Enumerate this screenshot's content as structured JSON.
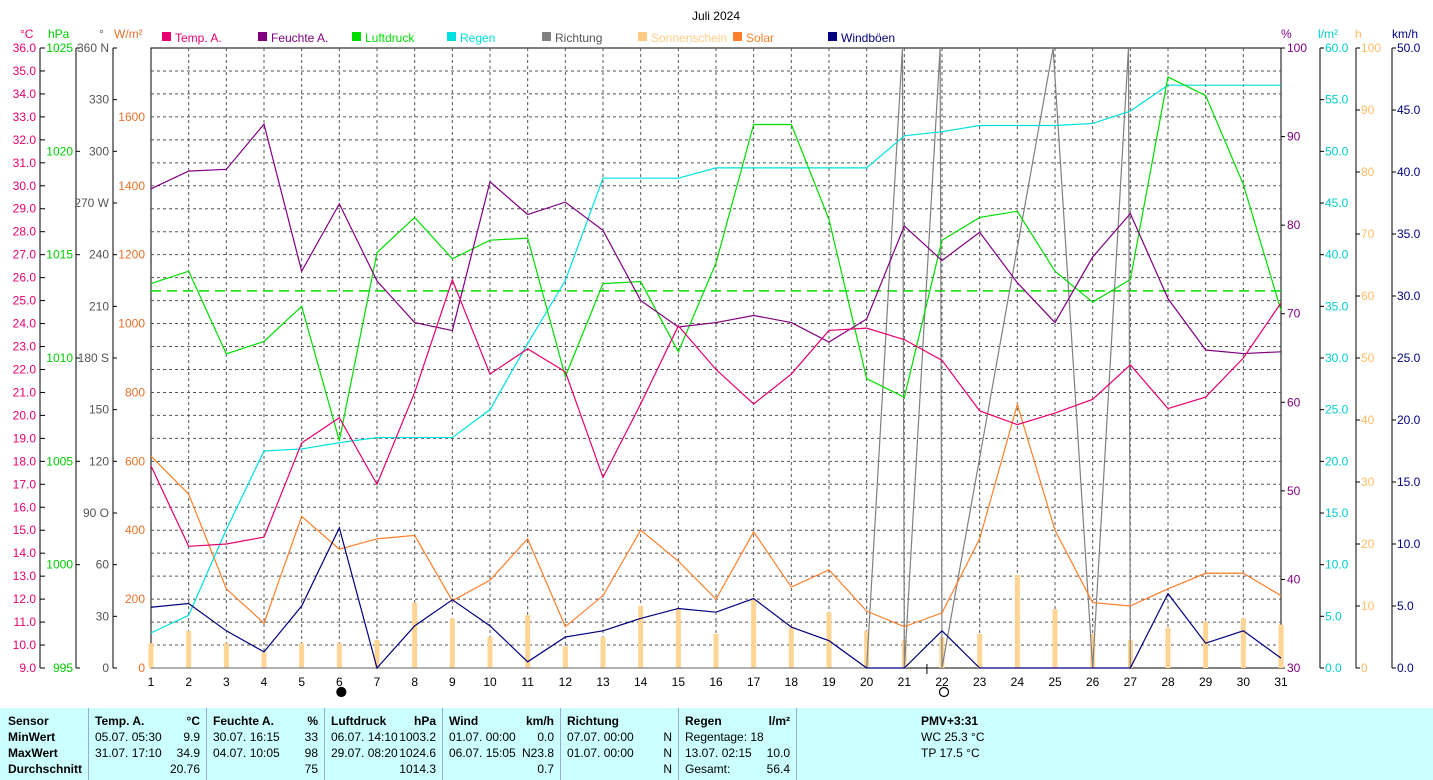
{
  "chart_data": {
    "type": "line",
    "title": "Juli 2024",
    "x_ticks": [
      1,
      2,
      3,
      4,
      5,
      6,
      7,
      8,
      9,
      10,
      11,
      12,
      13,
      14,
      15,
      16,
      17,
      18,
      19,
      20,
      21,
      22,
      23,
      24,
      25,
      26,
      27,
      28,
      29,
      30,
      31
    ],
    "legend": [
      {
        "name": "Temp. A.",
        "color": "#e8006e"
      },
      {
        "name": "Feuchte A.",
        "color": "#800080"
      },
      {
        "name": "Luftdruck",
        "color": "#00dd00"
      },
      {
        "name": "Regen",
        "color": "#00e0e0"
      },
      {
        "name": "Richtung",
        "color": "#808080"
      },
      {
        "name": "Sonnenschein",
        "color": "#ffcc88"
      },
      {
        "name": "Solar",
        "color": "#ff7f2a"
      },
      {
        "name": "Windböen",
        "color": "#000080"
      }
    ],
    "axes": {
      "temp": {
        "unit": "°C",
        "min": 9.0,
        "max": 36.0,
        "step": 1.0,
        "color": "#e8006e"
      },
      "pressure": {
        "unit": "hPa",
        "min": 995,
        "max": 1025,
        "step": 5,
        "color": "#00cc00"
      },
      "direction": {
        "unit": "°",
        "min": 0,
        "max": 360,
        "step": 30,
        "labels": {
          "0": "0",
          "30": "30",
          "60": "60",
          "90": "90 O",
          "120": "120",
          "150": "150",
          "180": "180 S",
          "210": "210",
          "240": "240",
          "270": "270 W",
          "300": "300",
          "330": "330",
          "360": "360 N"
        },
        "color": "#555555"
      },
      "solar": {
        "unit": "W/m²",
        "min": 0,
        "max": 1800,
        "step": 200,
        "color": "#e8702a"
      },
      "humidity": {
        "unit": "%",
        "min": 30,
        "max": 100,
        "step": 10,
        "color": "#800080"
      },
      "rain": {
        "unit": "l/m²",
        "min": 0,
        "max": 60,
        "step": 5,
        "color": "#00cccc"
      },
      "sunshine": {
        "unit": "h",
        "min": 0,
        "max": 100,
        "step": 10,
        "color": "#ffbb66"
      },
      "wind": {
        "unit": "km/h",
        "min": 0,
        "max": 50,
        "step": 5,
        "color": "#000080"
      }
    },
    "series": [
      {
        "name": "Temp. A.",
        "axis": "temp",
        "values": [
          17.8,
          14.3,
          14.4,
          14.7,
          18.8,
          19.9,
          17.0,
          21.0,
          25.9,
          21.8,
          22.9,
          21.9,
          17.3,
          20.5,
          23.9,
          22.0,
          20.5,
          21.8,
          23.7,
          23.8,
          23.3,
          22.4,
          20.2,
          19.6,
          20.1,
          20.7,
          22.2,
          20.3,
          20.8,
          22.5,
          24.9
        ]
      },
      {
        "name": "Feuchte A.",
        "axis": "humidity",
        "values": [
          84.1,
          86.1,
          86.3,
          91.4,
          74.8,
          82.4,
          73.7,
          69.0,
          68.1,
          84.9,
          81.2,
          82.6,
          79.4,
          71.5,
          68.5,
          69.0,
          69.8,
          69.0,
          66.8,
          69.4,
          79.9,
          76.0,
          79.2,
          73.5,
          69.0,
          76.4,
          81.3,
          71.7,
          65.9,
          65.5,
          65.7
        ]
      },
      {
        "name": "Luftdruck",
        "axis": "pressure",
        "values": [
          1013.6,
          1014.2,
          1010.2,
          1010.8,
          1012.5,
          1006.0,
          1015.1,
          1016.8,
          1014.8,
          1015.7,
          1015.8,
          1009.1,
          1013.6,
          1013.7,
          1010.3,
          1014.6,
          1021.3,
          1021.3,
          1016.7,
          1009.0,
          1008.1,
          1015.7,
          1016.8,
          1017.1,
          1014.2,
          1012.7,
          1013.8,
          1023.6,
          1022.7,
          1018.4,
          1012.3
        ]
      },
      {
        "name": "Regen",
        "axis": "rain",
        "values": [
          3.4,
          5.1,
          13.4,
          21.0,
          21.2,
          21.8,
          22.3,
          22.3,
          22.3,
          25.0,
          31.4,
          37.5,
          47.4,
          47.4,
          47.4,
          48.4,
          48.4,
          48.4,
          48.4,
          48.4,
          51.5,
          51.9,
          52.5,
          52.5,
          52.5,
          52.7,
          53.9,
          56.4,
          56.4,
          56.4,
          56.4
        ]
      },
      {
        "name": "Richtung",
        "axis": "direction",
        "values": [
          0,
          0,
          0,
          0,
          0,
          0,
          0,
          0,
          0,
          0,
          0,
          0,
          0,
          0,
          0,
          0,
          0,
          0,
          0,
          0,
          0,
          360,
          0,
          0,
          0,
          0,
          360,
          0,
          0,
          0,
          0
        ],
        "segments": [
          [
            20,
            0
          ],
          [
            20.95,
            360
          ],
          [
            21,
            0
          ],
          [
            21.95,
            360
          ],
          [
            22,
            0
          ],
          [
            24.95,
            360
          ],
          [
            26,
            0
          ],
          [
            26.95,
            360
          ]
        ]
      },
      {
        "name": "Sonnenschein",
        "axis": "sunshine",
        "type": "bar",
        "values": [
          4.0,
          6.0,
          4.0,
          2.5,
          4.0,
          4.0,
          4.5,
          10.5,
          8.0,
          5.0,
          8.5,
          3.5,
          5.0,
          10.0,
          9.5,
          5.5,
          11.0,
          6.5,
          9.0,
          6.0,
          4.5,
          5.0,
          5.5,
          15.0,
          9.5,
          5.5,
          4.5,
          6.5,
          7.5,
          8.0,
          7.0
        ]
      },
      {
        "name": "Solar",
        "axis": "solar",
        "values": [
          615,
          505,
          230,
          130,
          440,
          345,
          375,
          385,
          195,
          255,
          375,
          120,
          210,
          400,
          310,
          200,
          395,
          235,
          285,
          165,
          120,
          160,
          375,
          765,
          400,
          190,
          180,
          230,
          275,
          275,
          210
        ]
      },
      {
        "name": "Windböen",
        "axis": "wind",
        "values": [
          4.9,
          5.2,
          3.0,
          1.3,
          5.0,
          11.3,
          0.0,
          3.4,
          5.5,
          3.4,
          0.5,
          2.5,
          3.0,
          4.0,
          4.8,
          4.5,
          5.6,
          3.3,
          2.2,
          0.0,
          0.0,
          3.0,
          0.0,
          0.0,
          0.0,
          0.0,
          0.0,
          6.0,
          2.0,
          3.0,
          0.8
        ]
      }
    ],
    "reference_line": {
      "axis": "pressure",
      "value": 1013.25,
      "style": "dashed",
      "color": "#00dd00"
    },
    "moon_phases": [
      {
        "day": 6,
        "phase": "full"
      },
      {
        "day": 22,
        "phase": "new"
      }
    ],
    "grid": true
  },
  "stats": {
    "sensor": {
      "header": "Sensor",
      "rows": [
        "MinWert",
        "MaxWert",
        "Durchschnitt"
      ]
    },
    "temp": {
      "header": "Temp. A.",
      "unit": "°C",
      "min_dt": "05.07.  05:30",
      "min": "9.9",
      "max_dt": "31.07.  17:10",
      "max": "34.9",
      "avg": "20.76"
    },
    "hum": {
      "header": "Feuchte A.",
      "unit": "%",
      "min_dt": "30.07.  16:15",
      "min": "33",
      "max_dt": "04.07.  10:05",
      "max": "98",
      "avg": "75"
    },
    "press": {
      "header": "Luftdruck",
      "unit": "hPa",
      "min_dt": "06.07.  14:10",
      "min": "1003.2",
      "max_dt": "29.07.  08:20",
      "max": "1024.6",
      "avg": "1014.3"
    },
    "wind": {
      "header": "Wind",
      "unit": "km/h",
      "min_dt": "01.07.  00:00",
      "min": "0.0",
      "max_dt": "06.07.  15:05",
      "max_dir": "N",
      "max": "23.8",
      "avg": "0.7"
    },
    "dir": {
      "header": "Richtung",
      "min_dt": "07.07.  00:00",
      "min": "N",
      "max_dt": "01.07.  00:00",
      "max": "N",
      "avg": "N"
    },
    "rain": {
      "header": "Regen",
      "unit": "l/m²",
      "days_label": "Regentage: 18",
      "max_dt": "13.07.  02:15",
      "max": "10.0",
      "total_label": "Gesamt:",
      "total": "56.4"
    },
    "pmv": {
      "line1": "PMV+3:31",
      "line2": "WC 25.3 °C",
      "line3": "TP 17.5 °C"
    }
  }
}
